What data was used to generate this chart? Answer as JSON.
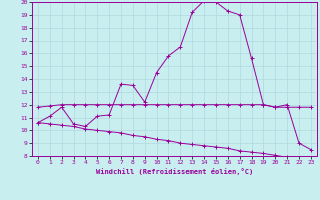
{
  "xlabel": "Windchill (Refroidissement éolien,°C)",
  "bg_color": "#c8eef0",
  "line_color": "#990099",
  "grid_color": "#b0d8dc",
  "xlim": [
    -0.5,
    23.5
  ],
  "ylim": [
    8,
    20
  ],
  "yticks": [
    8,
    9,
    10,
    11,
    12,
    13,
    14,
    15,
    16,
    17,
    18,
    19,
    20
  ],
  "xticks": [
    0,
    1,
    2,
    3,
    4,
    5,
    6,
    7,
    8,
    9,
    10,
    11,
    12,
    13,
    14,
    15,
    16,
    17,
    18,
    19,
    20,
    21,
    22,
    23
  ],
  "curve1_x": [
    0,
    1,
    2,
    3,
    4,
    5,
    6,
    7,
    8,
    9,
    10,
    11,
    12,
    13,
    14,
    15,
    16,
    17,
    18,
    19,
    20,
    21,
    22,
    23
  ],
  "curve1_y": [
    10.6,
    11.1,
    11.8,
    10.5,
    10.3,
    11.1,
    11.2,
    13.6,
    13.5,
    12.2,
    14.5,
    15.8,
    16.5,
    19.2,
    20.1,
    20.0,
    19.3,
    19.0,
    15.6,
    12.0,
    11.8,
    12.0,
    9.0,
    8.5
  ],
  "curve2_x": [
    0,
    1,
    2,
    3,
    4,
    5,
    6,
    7,
    8,
    9,
    10,
    11,
    12,
    13,
    14,
    15,
    16,
    17,
    18,
    19,
    20,
    21,
    22,
    23
  ],
  "curve2_y": [
    11.8,
    11.9,
    12.0,
    12.0,
    12.0,
    12.0,
    12.0,
    12.0,
    12.0,
    12.0,
    12.0,
    12.0,
    12.0,
    12.0,
    12.0,
    12.0,
    12.0,
    12.0,
    12.0,
    12.0,
    11.8,
    11.8,
    11.8,
    11.8
  ],
  "curve3_x": [
    0,
    1,
    2,
    3,
    4,
    5,
    6,
    7,
    8,
    9,
    10,
    11,
    12,
    13,
    14,
    15,
    16,
    17,
    18,
    19,
    20,
    21,
    22,
    23
  ],
  "curve3_y": [
    10.6,
    10.5,
    10.4,
    10.3,
    10.1,
    10.0,
    9.9,
    9.8,
    9.6,
    9.5,
    9.3,
    9.2,
    9.0,
    8.9,
    8.8,
    8.7,
    8.6,
    8.4,
    8.3,
    8.2,
    8.05,
    7.9,
    7.75,
    7.6
  ]
}
